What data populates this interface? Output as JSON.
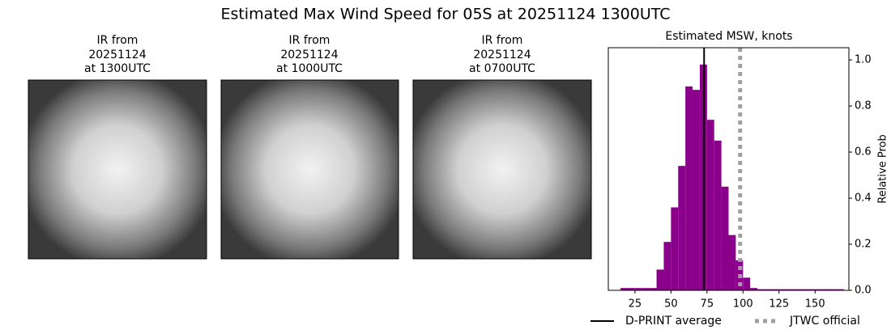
{
  "title": "Estimated Max Wind Speed for 05S at 20251124 1300UTC",
  "panels": [
    {
      "caption": [
        "IR from",
        "20251124",
        "at 1300UTC"
      ]
    },
    {
      "caption": [
        "IR from",
        "20251124",
        "at 1000UTC"
      ]
    },
    {
      "caption": [
        "IR from",
        "20251124",
        "at 0700UTC"
      ]
    }
  ],
  "chart_data": {
    "type": "histogram",
    "title": "Estimated MSW, knots",
    "y_label": "Relative Prob",
    "color": "#8b008b",
    "bins": [
      15,
      20,
      25,
      30,
      35,
      40,
      45,
      50,
      55,
      60,
      65,
      70,
      75,
      80,
      85,
      90,
      95,
      100,
      105,
      110,
      115,
      120,
      125,
      130,
      135,
      140,
      145,
      150,
      155,
      160,
      165,
      170
    ],
    "values": [
      0.01,
      0.01,
      0.01,
      0.01,
      0.01,
      0.09,
      0.21,
      0.36,
      0.54,
      0.885,
      0.87,
      0.98,
      0.74,
      0.65,
      0.45,
      0.24,
      0.13,
      0.055,
      0.01,
      0.005,
      0.005,
      0.005,
      0.005,
      0.005,
      0.005,
      0.005,
      0.005,
      0.005,
      0.005,
      0.005,
      0.005
    ],
    "xlim": [
      6.5,
      173.5
    ],
    "ylim": [
      0,
      1.053
    ],
    "xticks": [
      25,
      50,
      75,
      100,
      125,
      150
    ],
    "yticks": [
      {
        "value": 0,
        "label": "0.0"
      },
      0.2,
      0.4,
      0.6,
      0.8,
      {
        "value": 1,
        "label": "1.0"
      }
    ],
    "lines": [
      {
        "name": "D-PRINT average",
        "value": 73,
        "color": "#000000",
        "style": "solid"
      },
      {
        "name": "JTWC official",
        "value": 98,
        "color": "#a0a0a0",
        "style": "dotted"
      }
    ]
  }
}
